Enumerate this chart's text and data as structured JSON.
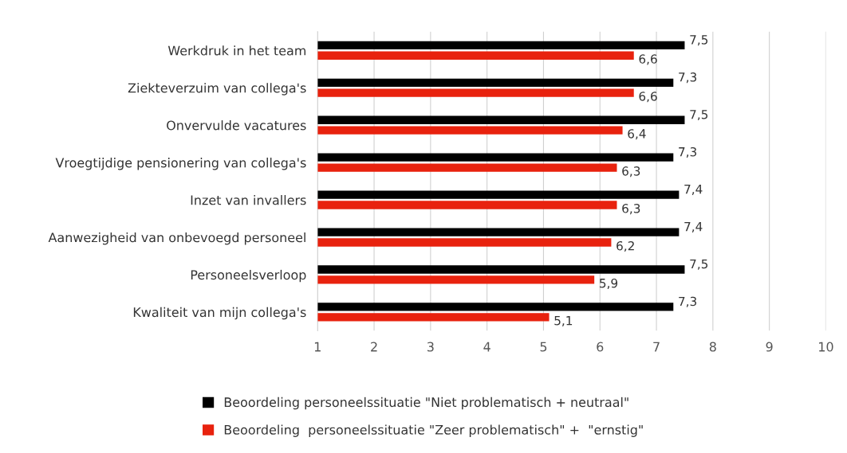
{
  "chart_data": {
    "type": "bar",
    "orientation": "horizontal",
    "categories": [
      "Werkdruk in het team",
      "Ziekteverzuim van collega's",
      "Onvervulde vacatures",
      "Vroegtijdige pensionering van collega's",
      "Inzet van invallers",
      "Aanwezigheid van onbevoegd personeel",
      "Personeelsverloop",
      "Kwaliteit van mijn collega's"
    ],
    "series": [
      {
        "name": "Beoordeling personeelssituatie \"Niet problematisch + neutraal\"",
        "color": "#000000",
        "values": [
          7.5,
          7.3,
          7.5,
          7.3,
          7.4,
          7.4,
          7.5,
          7.3
        ],
        "value_labels": [
          "7,5",
          "7,3",
          "7,5",
          "7,3",
          "7,4",
          "7,4",
          "7,5",
          "7,3"
        ]
      },
      {
        "name": "Beoordeling  personeelssituatie \"Zeer problematisch\" +  \"ernstig\"",
        "color": "#e8220e",
        "values": [
          6.6,
          6.6,
          6.4,
          6.3,
          6.3,
          6.2,
          5.9,
          5.1
        ],
        "value_labels": [
          "6,6",
          "6,6",
          "6,4",
          "6,3",
          "6,3",
          "6,2",
          "5,9",
          "5,1"
        ]
      }
    ],
    "xlim": [
      1,
      10
    ],
    "xticks": [
      1,
      2,
      3,
      4,
      5,
      6,
      7,
      8,
      9,
      10
    ],
    "grid": "x",
    "legend": "bottom"
  }
}
